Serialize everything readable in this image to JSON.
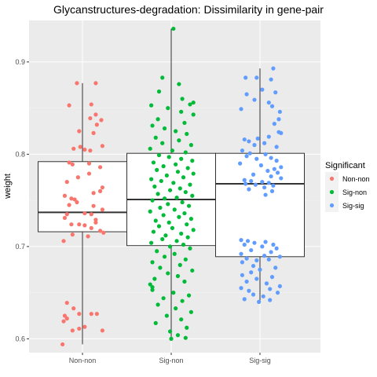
{
  "chart_data": {
    "type": "box+jitter",
    "title": "Glycanstructures-degradation: Dissimilarity in gene-pair",
    "xlabel": "",
    "ylabel": "weight",
    "categories": [
      "Non-non",
      "Sig-non",
      "Sig-sig"
    ],
    "ylim": [
      0.585,
      0.945
    ],
    "yticks": [
      0.6,
      0.7,
      0.8,
      0.9
    ],
    "grid": true,
    "legend": {
      "title": "Significant",
      "position": "right",
      "entries": [
        "Non-non",
        "Sig-non",
        "Sig-sig"
      ]
    },
    "colors": {
      "Non-non": "#F8766D",
      "Sig-non": "#00BA38",
      "Sig-sig": "#619CFF",
      "panel": "#EBEBEB",
      "grid_major": "#FFFFFF",
      "grid_minor": "#F5F5F5"
    },
    "boxes": [
      {
        "name": "Non-non",
        "whisker_low": 0.594,
        "q1": 0.716,
        "median": 0.737,
        "q3": 0.792,
        "whisker_high": 0.877
      },
      {
        "name": "Sig-non",
        "whisker_low": 0.6,
        "q1": 0.701,
        "median": 0.751,
        "q3": 0.801,
        "whisker_high": 0.936
      },
      {
        "name": "Sig-sig",
        "whisker_low": 0.64,
        "q1": 0.689,
        "median": 0.768,
        "q3": 0.801,
        "whisker_high": 0.893
      }
    ],
    "series": [
      {
        "name": "Non-non",
        "points": [
          [
            -0.05,
            0.877
          ],
          [
            0.12,
            0.877
          ],
          [
            0.08,
            0.854
          ],
          [
            -0.12,
            0.853
          ],
          [
            0.12,
            0.843
          ],
          [
            0.07,
            0.839
          ],
          [
            0.17,
            0.837
          ],
          [
            0.13,
            0.832
          ],
          [
            -0.03,
            0.825
          ],
          [
            0.1,
            0.823
          ],
          [
            0.18,
            0.809
          ],
          [
            -0.08,
            0.806
          ],
          [
            -0.02,
            0.808
          ],
          [
            0.02,
            0.805
          ],
          [
            0.07,
            0.804
          ],
          [
            -0.12,
            0.791
          ],
          [
            -0.09,
            0.789
          ],
          [
            0.06,
            0.79
          ],
          [
            0.16,
            0.786
          ],
          [
            0.06,
            0.779
          ],
          [
            -0.04,
            0.775
          ],
          [
            -0.14,
            0.77
          ],
          [
            0.18,
            0.764
          ],
          [
            0.16,
            0.76
          ],
          [
            0.1,
            0.758
          ],
          [
            -0.16,
            0.755
          ],
          [
            -0.1,
            0.752
          ],
          [
            -0.07,
            0.751
          ],
          [
            -0.05,
            0.748
          ],
          [
            0.1,
            0.744
          ],
          [
            -0.12,
            0.745
          ],
          [
            0.18,
            0.74
          ],
          [
            -0.14,
            0.735
          ],
          [
            0.08,
            0.735
          ],
          [
            0.02,
            0.736
          ],
          [
            -0.16,
            0.731
          ],
          [
            0.12,
            0.729
          ],
          [
            0.12,
            0.726
          ],
          [
            -0.1,
            0.724
          ],
          [
            -0.03,
            0.724
          ],
          [
            0.02,
            0.723
          ],
          [
            0.08,
            0.72
          ],
          [
            0.16,
            0.717
          ],
          [
            0.19,
            0.715
          ],
          [
            -0.09,
            0.713
          ],
          [
            0.05,
            0.711
          ],
          [
            -0.17,
            0.706
          ],
          [
            -0.14,
            0.639
          ],
          [
            -0.08,
            0.633
          ],
          [
            -0.16,
            0.625
          ],
          [
            -0.03,
            0.627
          ],
          [
            0.08,
            0.627
          ],
          [
            0.13,
            0.627
          ],
          [
            -0.17,
            0.619
          ],
          [
            -0.14,
            0.622
          ],
          [
            -0.03,
            0.611
          ],
          [
            0.02,
            0.613
          ],
          [
            -0.09,
            0.609
          ],
          [
            0.18,
            0.609
          ],
          [
            -0.18,
            0.594
          ]
        ]
      },
      {
        "name": "Sig-non",
        "points": [
          [
            0.02,
            0.936
          ],
          [
            -0.08,
            0.883
          ],
          [
            0.07,
            0.876
          ],
          [
            -0.11,
            0.868
          ],
          [
            0.1,
            0.86
          ],
          [
            0.17,
            0.854
          ],
          [
            0.2,
            0.856
          ],
          [
            -0.18,
            0.853
          ],
          [
            -0.03,
            0.85
          ],
          [
            0.09,
            0.846
          ],
          [
            0.2,
            0.843
          ],
          [
            -0.12,
            0.838
          ],
          [
            0.12,
            0.834
          ],
          [
            -0.17,
            0.831
          ],
          [
            -0.06,
            0.828
          ],
          [
            0.04,
            0.825
          ],
          [
            0.14,
            0.822
          ],
          [
            -0.14,
            0.818
          ],
          [
            0.07,
            0.815
          ],
          [
            -0.08,
            0.812
          ],
          [
            0.18,
            0.81
          ],
          [
            -0.19,
            0.806
          ],
          [
            0.01,
            0.804
          ],
          [
            0.13,
            0.802
          ],
          [
            -0.11,
            0.799
          ],
          [
            -0.02,
            0.797
          ],
          [
            0.09,
            0.795
          ],
          [
            0.19,
            0.793
          ],
          [
            -0.16,
            0.791
          ],
          [
            0.04,
            0.789
          ],
          [
            -0.07,
            0.787
          ],
          [
            0.15,
            0.785
          ],
          [
            -0.13,
            0.783
          ],
          [
            0.06,
            0.781
          ],
          [
            0.2,
            0.779
          ],
          [
            -0.04,
            0.777
          ],
          [
            0.11,
            0.775
          ],
          [
            -0.18,
            0.773
          ],
          [
            -0.09,
            0.771
          ],
          [
            0.02,
            0.769
          ],
          [
            0.17,
            0.767
          ],
          [
            -0.15,
            0.765
          ],
          [
            0.08,
            0.763
          ],
          [
            -0.01,
            0.761
          ],
          [
            0.13,
            0.759
          ],
          [
            -0.12,
            0.757
          ],
          [
            0.19,
            0.755
          ],
          [
            0.05,
            0.753
          ],
          [
            -0.06,
            0.752
          ],
          [
            -0.17,
            0.75
          ],
          [
            0.1,
            0.748
          ],
          [
            -0.03,
            0.746
          ],
          [
            0.16,
            0.744
          ],
          [
            -0.1,
            0.742
          ],
          [
            0.03,
            0.74
          ],
          [
            -0.19,
            0.738
          ],
          [
            0.12,
            0.736
          ],
          [
            -0.07,
            0.734
          ],
          [
            0.07,
            0.732
          ],
          [
            0.18,
            0.73
          ],
          [
            -0.14,
            0.728
          ],
          [
            -0.02,
            0.726
          ],
          [
            0.14,
            0.724
          ],
          [
            -0.11,
            0.722
          ],
          [
            0.01,
            0.72
          ],
          [
            0.2,
            0.718
          ],
          [
            -0.16,
            0.716
          ],
          [
            0.09,
            0.714
          ],
          [
            -0.05,
            0.712
          ],
          [
            0.15,
            0.71
          ],
          [
            -0.08,
            0.708
          ],
          [
            0.05,
            0.706
          ],
          [
            -0.18,
            0.704
          ],
          [
            0.11,
            0.702
          ],
          [
            -0.01,
            0.7
          ],
          [
            0.17,
            0.698
          ],
          [
            -0.13,
            0.695
          ],
          [
            0.03,
            0.692
          ],
          [
            -0.06,
            0.689
          ],
          [
            0.13,
            0.686
          ],
          [
            -0.17,
            0.683
          ],
          [
            0.08,
            0.68
          ],
          [
            -0.1,
            0.677
          ],
          [
            0.19,
            0.674
          ],
          [
            -0.03,
            0.671
          ],
          [
            0.06,
            0.668
          ],
          [
            -0.15,
            0.665
          ],
          [
            0.12,
            0.662
          ],
          [
            -0.19,
            0.659
          ],
          [
            -0.17,
            0.656
          ],
          [
            -0.17,
            0.653
          ],
          [
            0.02,
            0.65
          ],
          [
            0.16,
            0.647
          ],
          [
            -0.07,
            0.644
          ],
          [
            0.1,
            0.641
          ],
          [
            -0.12,
            0.637
          ],
          [
            0.04,
            0.633
          ],
          [
            0.18,
            0.629
          ],
          [
            -0.04,
            0.625
          ],
          [
            0.09,
            0.621
          ],
          [
            -0.14,
            0.617
          ],
          [
            0.14,
            0.612
          ],
          [
            -0.01,
            0.608
          ],
          [
            0.06,
            0.604
          ],
          [
            0.13,
            0.601
          ],
          [
            0.0,
            0.6
          ]
        ]
      },
      {
        "name": "Sig-sig",
        "points": [
          [
            0.12,
            0.893
          ],
          [
            -0.13,
            0.883
          ],
          [
            -0.03,
            0.883
          ],
          [
            0.1,
            0.881
          ],
          [
            0.02,
            0.87
          ],
          [
            0.14,
            0.867
          ],
          [
            -0.12,
            0.865
          ],
          [
            -0.05,
            0.859
          ],
          [
            0.08,
            0.856
          ],
          [
            0.11,
            0.852
          ],
          [
            -0.17,
            0.849
          ],
          [
            0.18,
            0.846
          ],
          [
            0.17,
            0.838
          ],
          [
            0.13,
            0.833
          ],
          [
            0.17,
            0.824
          ],
          [
            0.19,
            0.823
          ],
          [
            0.08,
            0.819
          ],
          [
            -0.02,
            0.817
          ],
          [
            -0.14,
            0.816
          ],
          [
            -0.1,
            0.814
          ],
          [
            0.04,
            0.812
          ],
          [
            -0.05,
            0.81
          ],
          [
            0.15,
            0.808
          ],
          [
            -0.16,
            0.804
          ],
          [
            -0.09,
            0.801
          ],
          [
            0.05,
            0.8
          ],
          [
            -0.12,
            0.798
          ],
          [
            0.1,
            0.796
          ],
          [
            -0.03,
            0.795
          ],
          [
            0.15,
            0.793
          ],
          [
            -0.18,
            0.79
          ],
          [
            0.01,
            0.788
          ],
          [
            0.19,
            0.786
          ],
          [
            0.13,
            0.784
          ],
          [
            0.07,
            0.782
          ],
          [
            0.16,
            0.78
          ],
          [
            -0.06,
            0.778
          ],
          [
            0.1,
            0.776
          ],
          [
            0.19,
            0.774
          ],
          [
            -0.14,
            0.772
          ],
          [
            -0.08,
            0.771
          ],
          [
            0.02,
            0.77
          ],
          [
            0.08,
            0.769
          ],
          [
            -0.13,
            0.768
          ],
          [
            -0.04,
            0.767
          ],
          [
            0.12,
            0.766
          ],
          [
            0.04,
            0.764
          ],
          [
            -0.1,
            0.762
          ],
          [
            0.11,
            0.76
          ],
          [
            0.05,
            0.756
          ],
          [
            -0.17,
            0.707
          ],
          [
            -0.11,
            0.706
          ],
          [
            0.05,
            0.705
          ],
          [
            -0.05,
            0.704
          ],
          [
            -0.14,
            0.702
          ],
          [
            0.12,
            0.702
          ],
          [
            0.02,
            0.7
          ],
          [
            0.15,
            0.698
          ],
          [
            -0.08,
            0.696
          ],
          [
            0.1,
            0.694
          ],
          [
            -0.17,
            0.692
          ],
          [
            0.04,
            0.69
          ],
          [
            0.18,
            0.689
          ],
          [
            -0.12,
            0.687
          ],
          [
            0.08,
            0.686
          ],
          [
            -0.03,
            0.685
          ],
          [
            -0.16,
            0.683
          ],
          [
            -0.06,
            0.679
          ],
          [
            0.14,
            0.677
          ],
          [
            0.0,
            0.675
          ],
          [
            -0.08,
            0.672
          ],
          [
            -0.16,
            0.669
          ],
          [
            0.11,
            0.667
          ],
          [
            -0.03,
            0.665
          ],
          [
            -0.12,
            0.662
          ],
          [
            0.06,
            0.66
          ],
          [
            0.18,
            0.657
          ],
          [
            -0.17,
            0.655
          ],
          [
            0.09,
            0.654
          ],
          [
            -0.1,
            0.652
          ],
          [
            0.16,
            0.65
          ],
          [
            -0.06,
            0.648
          ],
          [
            0.03,
            0.646
          ],
          [
            -0.14,
            0.643
          ],
          [
            0.09,
            0.642
          ],
          [
            -0.01,
            0.64
          ]
        ]
      }
    ]
  }
}
